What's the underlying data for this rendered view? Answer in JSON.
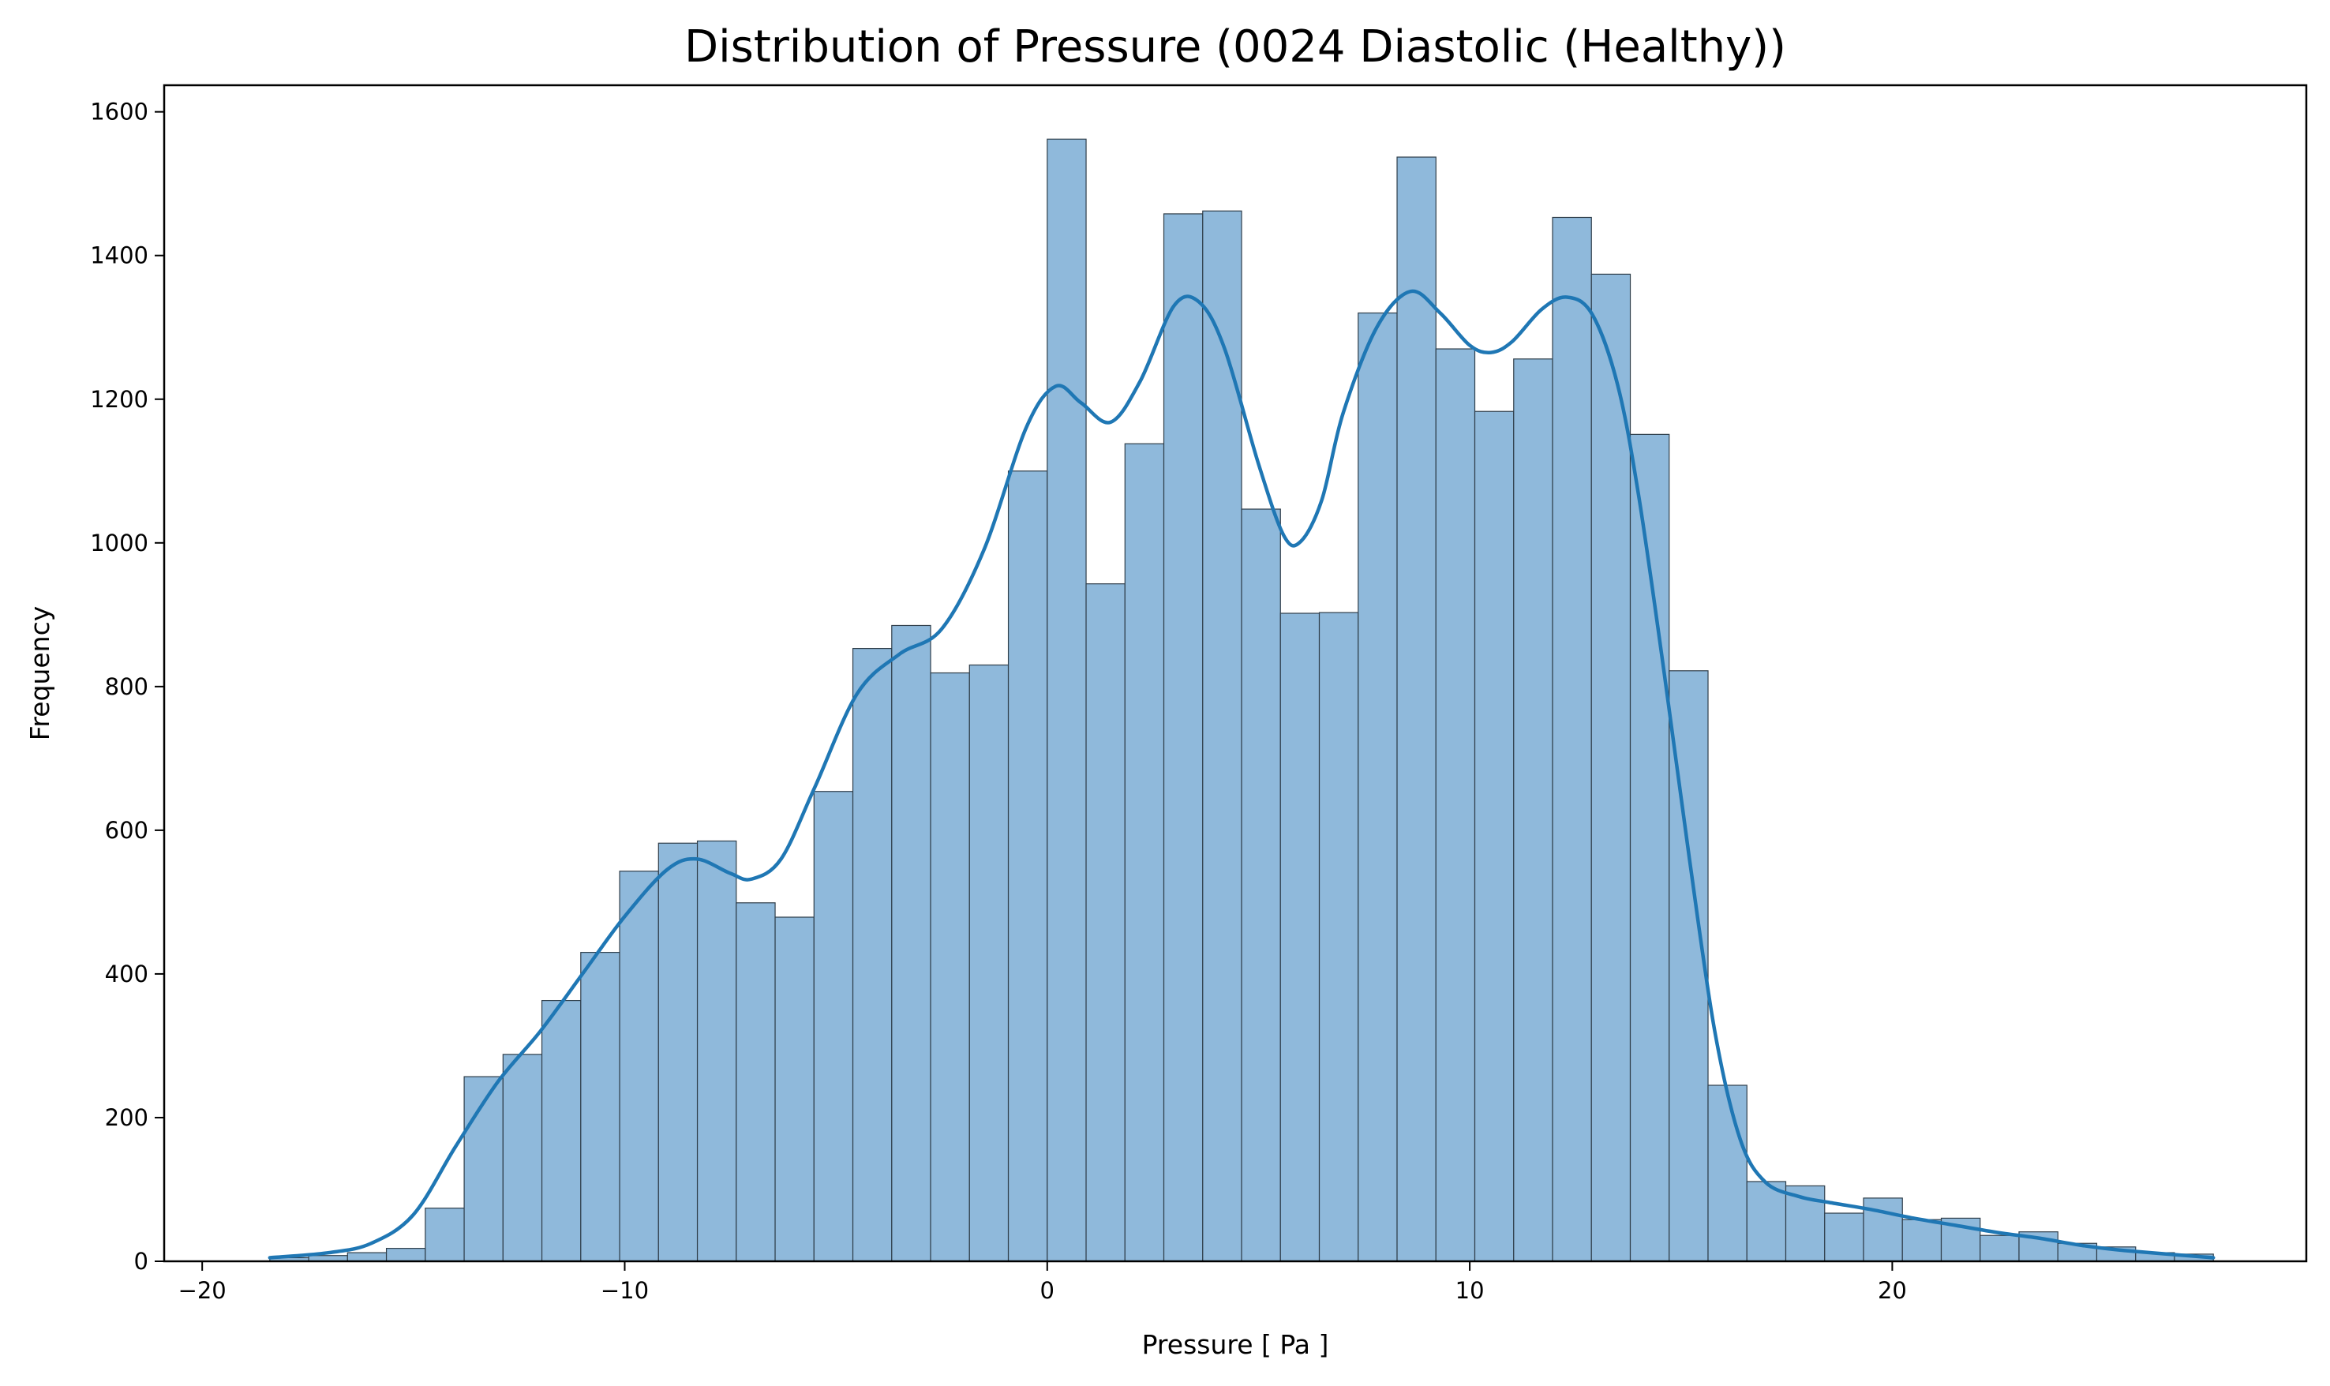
{
  "chart_data": {
    "type": "histogram",
    "title": "Distribution of Pressure (0024 Diastolic (Healthy))",
    "xlabel": "Pressure [ Pa ]",
    "ylabel": "Frequency",
    "xlim": [
      -20.9,
      29.8
    ],
    "ylim": [
      0,
      1637
    ],
    "x_ticks": [
      -20,
      -10,
      0,
      10,
      20
    ],
    "x_tick_labels": [
      "−20",
      "−10",
      "0",
      "10",
      "20"
    ],
    "y_ticks": [
      0,
      200,
      400,
      600,
      800,
      1000,
      1200,
      1400,
      1600
    ],
    "y_tick_labels": [
      "0",
      "200",
      "400",
      "600",
      "800",
      "1000",
      "1200",
      "1400",
      "1600"
    ],
    "grid": false,
    "bar_fill": "#8fb9db",
    "bar_edge": "#2f3e4a",
    "kde_color": "#1f77b4",
    "bin_edges": [
      -18.4,
      -17.48,
      -16.56,
      -15.64,
      -14.72,
      -13.8,
      -12.88,
      -11.96,
      -11.04,
      -10.12,
      -9.2,
      -8.28,
      -7.36,
      -6.44,
      -5.52,
      -4.6,
      -3.68,
      -2.76,
      -1.84,
      -0.92,
      0.0,
      0.92,
      1.84,
      2.76,
      3.68,
      4.6,
      5.52,
      6.44,
      7.36,
      8.28,
      9.2,
      10.12,
      11.04,
      11.96,
      12.88,
      13.8,
      14.72,
      15.64,
      16.56,
      17.48,
      18.4,
      19.32,
      20.24,
      21.16,
      22.08,
      23.0,
      23.92,
      24.84,
      25.76,
      26.68,
      27.6
    ],
    "counts": [
      5,
      8,
      12,
      18,
      74,
      257,
      288,
      363,
      430,
      543,
      582,
      585,
      499,
      479,
      654,
      853,
      885,
      819,
      830,
      1100,
      1562,
      943,
      1138,
      1458,
      1462,
      1047,
      902,
      903,
      1320,
      1537,
      1270,
      1183,
      1256,
      1453,
      1374,
      1151,
      822,
      245,
      111,
      105,
      67,
      88,
      58,
      60,
      36,
      41,
      25,
      20,
      12,
      10
    ],
    "kde": {
      "x": [
        -18.4,
        -17,
        -16,
        -15,
        -14,
        -13,
        -12,
        -11,
        -10,
        -9,
        -8.3,
        -7.5,
        -7,
        -6.3,
        -5.5,
        -4.5,
        -3.5,
        -2.5,
        -1.5,
        -0.5,
        0.2,
        0.8,
        1.5,
        2.2,
        3.0,
        3.6,
        4.2,
        5.0,
        5.6,
        6.0,
        6.5,
        7.0,
        7.8,
        8.6,
        9.3,
        10.0,
        10.5,
        11.0,
        11.7,
        12.3,
        12.9,
        13.5,
        14.0,
        14.6,
        15.2,
        15.8,
        16.4,
        17.0,
        17.8,
        18.5,
        19.5,
        20.5,
        21.5,
        22.5,
        23.5,
        24.5,
        25.5,
        27.6
      ],
      "y": [
        5,
        12,
        25,
        65,
        160,
        250,
        320,
        400,
        480,
        545,
        560,
        540,
        532,
        560,
        660,
        790,
        845,
        880,
        990,
        1160,
        1218,
        1195,
        1168,
        1225,
        1330,
        1335,
        1270,
        1110,
        1010,
        1002,
        1060,
        1180,
        1300,
        1350,
        1320,
        1275,
        1265,
        1280,
        1325,
        1342,
        1318,
        1220,
        1065,
        820,
        560,
        320,
        170,
        110,
        90,
        82,
        72,
        60,
        50,
        40,
        32,
        22,
        15,
        5
      ]
    }
  }
}
